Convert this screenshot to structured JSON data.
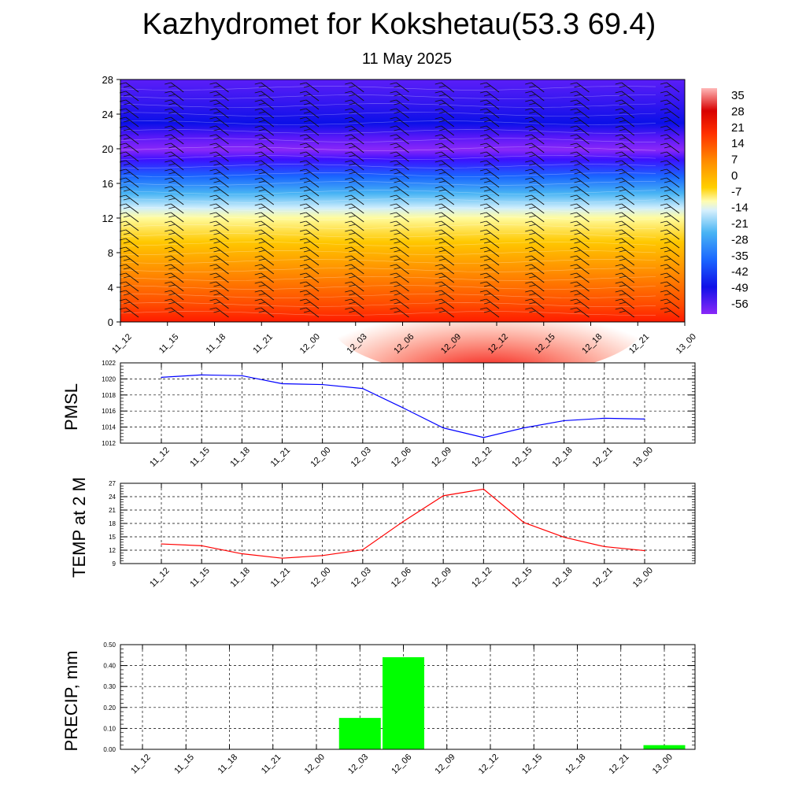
{
  "header": {
    "title": "Kazhydromet for Kokshetau(53.3 69.4)",
    "subtitle": "11 May 2025"
  },
  "chart_data": [
    {
      "type": "heatmap",
      "name": "vertical cross-section",
      "y_ticks": [
        "0",
        "4",
        "8",
        "12",
        "16",
        "20",
        "24",
        "28"
      ],
      "ylim": [
        0,
        28
      ],
      "x_ticks": [
        "11_12",
        "11_15",
        "11_18",
        "11_21",
        "12_00",
        "12_03",
        "12_06",
        "12_09",
        "12_12",
        "12_15",
        "12_18",
        "12_21",
        "13_00"
      ],
      "colorbar_labels": [
        "35",
        "28",
        "21",
        "14",
        "7",
        "0",
        "-7",
        "-14",
        "-21",
        "-28",
        "-35",
        "-42",
        "-49",
        "-56"
      ],
      "grid": false
    },
    {
      "type": "line",
      "ylabel": "PMSL",
      "categories": [
        "11_12",
        "11_15",
        "11_18",
        "11_21",
        "12_00",
        "12_03",
        "12_06",
        "12_09",
        "12_12",
        "12_15",
        "12_18",
        "12_21",
        "13_00"
      ],
      "values": [
        1020.2,
        1020.5,
        1020.4,
        1019.4,
        1019.3,
        1018.8,
        1016.4,
        1013.9,
        1012.7,
        1013.9,
        1014.8,
        1015.1,
        1015.0
      ],
      "ylim": [
        1012,
        1022
      ],
      "y_ticks": [
        "1012",
        "1014",
        "1016",
        "1018",
        "1020",
        "1022"
      ],
      "color": "#0000ff",
      "grid": true
    },
    {
      "type": "line",
      "ylabel": "TEMP at 2 M",
      "categories": [
        "11_12",
        "11_15",
        "11_18",
        "11_21",
        "12_00",
        "12_03",
        "12_06",
        "12_09",
        "12_12",
        "12_15",
        "12_18",
        "12_21",
        "13_00"
      ],
      "values": [
        13.4,
        13.0,
        11.2,
        10.2,
        10.8,
        12.1,
        18.4,
        24.2,
        25.7,
        18.2,
        14.9,
        12.8,
        11.9
      ],
      "ylim": [
        9,
        27
      ],
      "y_ticks": [
        "9",
        "12",
        "15",
        "18",
        "21",
        "24",
        "27"
      ],
      "color": "#ff0000",
      "grid": true
    },
    {
      "type": "bar",
      "ylabel": "PRECIP, mm",
      "categories": [
        "11_12",
        "11_15",
        "11_18",
        "11_21",
        "12_00",
        "12_03",
        "12_06",
        "12_09",
        "12_12",
        "12_15",
        "12_18",
        "12_21",
        "13_00"
      ],
      "values": [
        0,
        0,
        0,
        0,
        0,
        0.15,
        0.44,
        0,
        0,
        0,
        0,
        0,
        0.02
      ],
      "ylim": [
        0,
        0.5
      ],
      "y_ticks": [
        "0.00",
        "0.10",
        "0.20",
        "0.30",
        "0.40",
        "0.50"
      ],
      "color": "#00ff00",
      "grid": true
    }
  ]
}
